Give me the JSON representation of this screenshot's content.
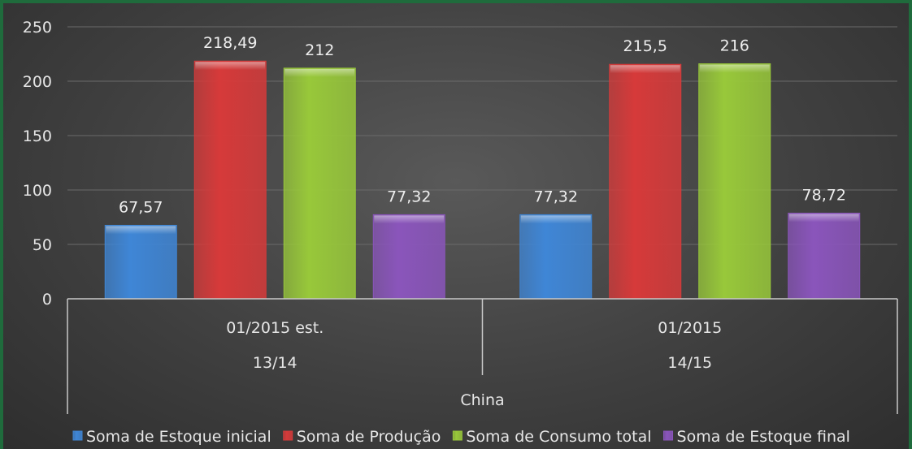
{
  "chart_data": {
    "type": "bar",
    "title": "",
    "xlabel": "",
    "ylabel": "",
    "ylim": [
      0,
      250
    ],
    "yticks": [
      0,
      50,
      100,
      150,
      200,
      250
    ],
    "grid": true,
    "legend_position": "bottom",
    "categories": [
      {
        "level1": "01/2015 est.",
        "level2": "13/14"
      },
      {
        "level1": "01/2015",
        "level2": "14/15"
      }
    ],
    "outer_category": "China",
    "series": [
      {
        "name": "Soma de Estoque inicial",
        "color": "#3f86d6",
        "values": [
          67.57,
          77.32
        ],
        "labels": [
          "67,57",
          "77,32"
        ]
      },
      {
        "name": "Soma de Produção",
        "color": "#d63a3a",
        "values": [
          218.49,
          215.5
        ],
        "labels": [
          "218,49",
          "215,5"
        ]
      },
      {
        "name": "Soma de Consumo total",
        "color": "#98c83a",
        "values": [
          212,
          216
        ],
        "labels": [
          "212",
          "216"
        ]
      },
      {
        "name": "Soma de Estoque final",
        "color": "#8a55bb",
        "values": [
          77.32,
          78.72
        ],
        "labels": [
          "77,32",
          "78,72"
        ]
      }
    ]
  }
}
